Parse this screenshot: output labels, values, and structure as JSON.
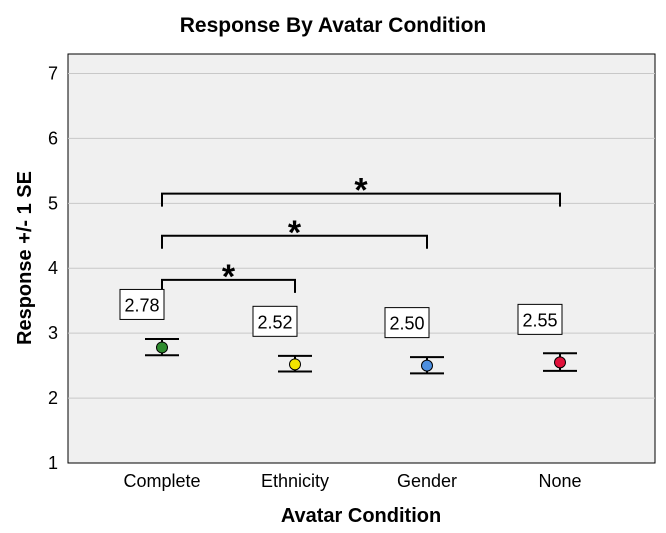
{
  "chart_data": {
    "type": "scatter",
    "title": "Response By Avatar Condition",
    "xlabel": "Avatar Condition",
    "ylabel": "Response +/- 1 SE",
    "ylim": [
      1,
      7.3
    ],
    "yticks": [
      "1",
      "2",
      "3",
      "4",
      "5",
      "6",
      "7"
    ],
    "grid": "horizontal",
    "categories": [
      "Complete",
      "Ethnicity",
      "Gender",
      "None"
    ],
    "values": [
      2.78,
      2.52,
      2.5,
      2.55
    ],
    "value_labels": [
      "2.78",
      "2.52",
      "2.50",
      "2.55"
    ],
    "se_low": [
      2.66,
      2.41,
      2.38,
      2.42
    ],
    "se_high": [
      2.91,
      2.65,
      2.63,
      2.69
    ],
    "point_colors": [
      "#2e8b2e",
      "#f2e400",
      "#4d8fe0",
      "#e0103a"
    ],
    "significance": [
      {
        "from": "Complete",
        "to": "Ethnicity",
        "y": 3.82,
        "label": "*"
      },
      {
        "from": "Complete",
        "to": "Gender",
        "y": 4.5,
        "label": "*"
      },
      {
        "from": "Complete",
        "to": "None",
        "y": 5.15,
        "label": "*"
      }
    ]
  }
}
